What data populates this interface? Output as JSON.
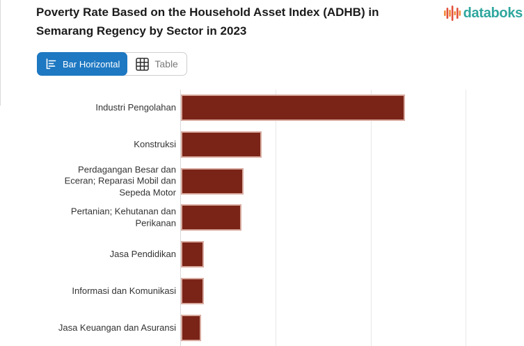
{
  "header": {
    "title": "Poverty Rate Based on the Household Asset Index (ADHB) in Semarang Regency by Sector in 2023",
    "logo_text": "databoks"
  },
  "toolbar": {
    "bar_horizontal_label": "Bar Horizontal",
    "table_label": "Table",
    "active_view": "Bar Horizontal"
  },
  "colors": {
    "accent_blue": "#1e78c2",
    "logo_teal": "#2fa79e",
    "logo_red": "#e2503c",
    "logo_orange": "#f28c38",
    "bar_fill": "#7a2417",
    "bar_stroke": "#d9aba0",
    "gridline": "#e8e8e8",
    "axis_line": "#d9d9d9"
  },
  "chart_data": {
    "type": "bar",
    "orientation": "horizontal",
    "title": "Poverty Rate Based on the Household Asset Index (ADHB) in Semarang Regency by Sector in 2023",
    "categories": [
      "Industri Pengolahan",
      "Konstruksi",
      "Perdagangan Besar dan Eceran; Reparasi Mobil dan Sepeda Motor",
      "Pertanian; Kehutanan dan Perikanan",
      "Jasa Pendidikan",
      "Informasi dan Komunikasi",
      "Jasa Keuangan dan Asuransi"
    ],
    "values": [
      23.6,
      8.5,
      6.6,
      6.4,
      2.4,
      2.4,
      2.1
    ],
    "xlim": [
      0,
      36.2
    ],
    "gridline_values": [
      10,
      20,
      30
    ],
    "grid": true,
    "legend": "none",
    "x_axis_labels_visible": false,
    "bar_color": "#7a2417",
    "bar_border_color": "#d9aba0"
  }
}
